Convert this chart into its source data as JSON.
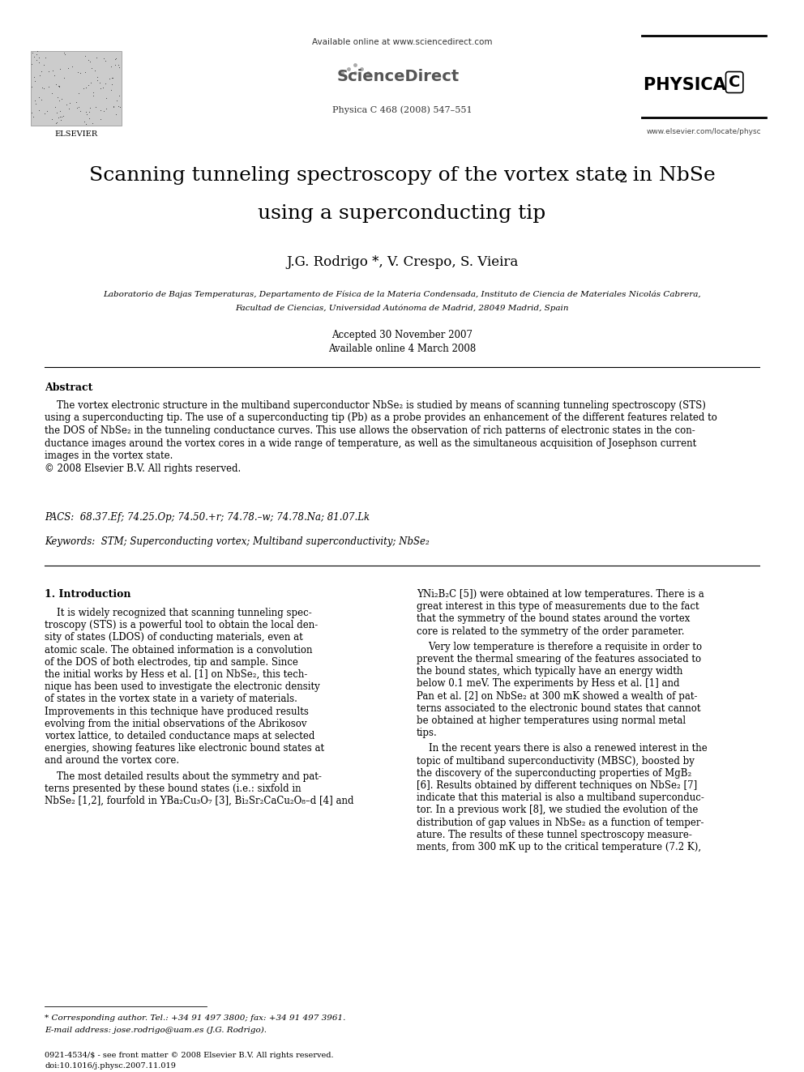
{
  "page_width": 9.92,
  "page_height": 13.23,
  "bg_color": "#ffffff",
  "available_online": "Available online at www.sciencedirect.com",
  "sciencedirect": "ScienceDirect",
  "journal_ref": "Physica C 468 (2008) 547–551",
  "website": "www.elsevier.com/locate/physc",
  "elsevier_label": "ELSEVIER",
  "title_line1": "Scanning tunneling spectroscopy of the vortex state in NbSe",
  "title_sub": "2",
  "title_line2": "using a superconducting tip",
  "authors": "J.G. Rodrigo *, V. Crespo, S. Vieira",
  "affiliation_line1": "Laboratorio de Bajas Temperaturas, Departamento de Física de la Materia Condensada, Instituto de Ciencia de Materiales Nicolás Cabrera,",
  "affiliation_line2": "Facultad de Ciencias, Universidad Autónoma de Madrid, 28049 Madrid, Spain",
  "received": "Accepted 30 November 2007",
  "available": "Available online 4 March 2008",
  "abstract_title": "Abstract",
  "abstract_lines": [
    "    The vortex electronic structure in the multiband superconductor NbSe₂ is studied by means of scanning tunneling spectroscopy (STS)",
    "using a superconducting tip. The use of a superconducting tip (Pb) as a probe provides an enhancement of the different features related to",
    "the DOS of NbSe₂ in the tunneling conductance curves. This use allows the observation of rich patterns of electronic states in the con-",
    "ductance images around the vortex cores in a wide range of temperature, as well as the simultaneous acquisition of Josephson current",
    "images in the vortex state.",
    "© 2008 Elsevier B.V. All rights reserved."
  ],
  "pacs_text": "PACS:  68.37.Ef; 74.25.Op; 74.50.+r; 74.78.–w; 74.78.Na; 81.07.Lk",
  "keywords_text": "Keywords:  STM; Superconducting vortex; Multiband superconductivity; NbSe₂",
  "section1_heading": "1. Introduction",
  "col1_lines": [
    "    It is widely recognized that scanning tunneling spec-",
    "troscopy (STS) is a powerful tool to obtain the local den-",
    "sity of states (LDOS) of conducting materials, even at",
    "atomic scale. The obtained information is a convolution",
    "of the DOS of both electrodes, tip and sample. Since",
    "the initial works by Hess et al. [1] on NbSe₂, this tech-",
    "nique has been used to investigate the electronic density",
    "of states in the vortex state in a variety of materials.",
    "Improvements in this technique have produced results",
    "evolving from the initial observations of the Abrikosov",
    "vortex lattice, to detailed conductance maps at selected",
    "energies, showing features like electronic bound states at",
    "and around the vortex core.",
    "    The most detailed results about the symmetry and pat-",
    "terns presented by these bound states (i.e.: sixfold in",
    "NbSe₂ [1,2], fourfold in YBa₂Cu₃O₇ [3], Bi₂Sr₂CaCu₂O₈–d [4] and"
  ],
  "col2_lines": [
    "YNi₂B₂C [5]) were obtained at low temperatures. There is a",
    "great interest in this type of measurements due to the fact",
    "that the symmetry of the bound states around the vortex",
    "core is related to the symmetry of the order parameter.",
    "    Very low temperature is therefore a requisite in order to",
    "prevent the thermal smearing of the features associated to",
    "the bound states, which typically have an energy width",
    "below 0.1 meV. The experiments by Hess et al. [1] and",
    "Pan et al. [2] on NbSe₂ at 300 mK showed a wealth of pat-",
    "terns associated to the electronic bound states that cannot",
    "be obtained at higher temperatures using normal metal",
    "tips.",
    "    In the recent years there is also a renewed interest in the",
    "topic of multiband superconductivity (MBSC), boosted by",
    "the discovery of the superconducting properties of MgB₂",
    "[6]. Results obtained by different techniques on NbSe₂ [7]",
    "indicate that this material is also a multiband superconduc-",
    "tor. In a previous work [8], we studied the evolution of the",
    "distribution of gap values in NbSe₂ as a function of temper-",
    "ature. The results of these tunnel spectroscopy measure-",
    "ments, from 300 mK up to the critical temperature (7.2 K),"
  ],
  "footnote1": "* Corresponding author. Tel.: +34 91 497 3800; fax: +34 91 497 3961.",
  "footnote2": "E-mail address: jose.rodrigo@uam.es (J.G. Rodrigo).",
  "footer1": "0921-4534/$ - see front matter © 2008 Elsevier B.V. All rights reserved.",
  "footer2": "doi:10.1016/j.physc.2007.11.019"
}
